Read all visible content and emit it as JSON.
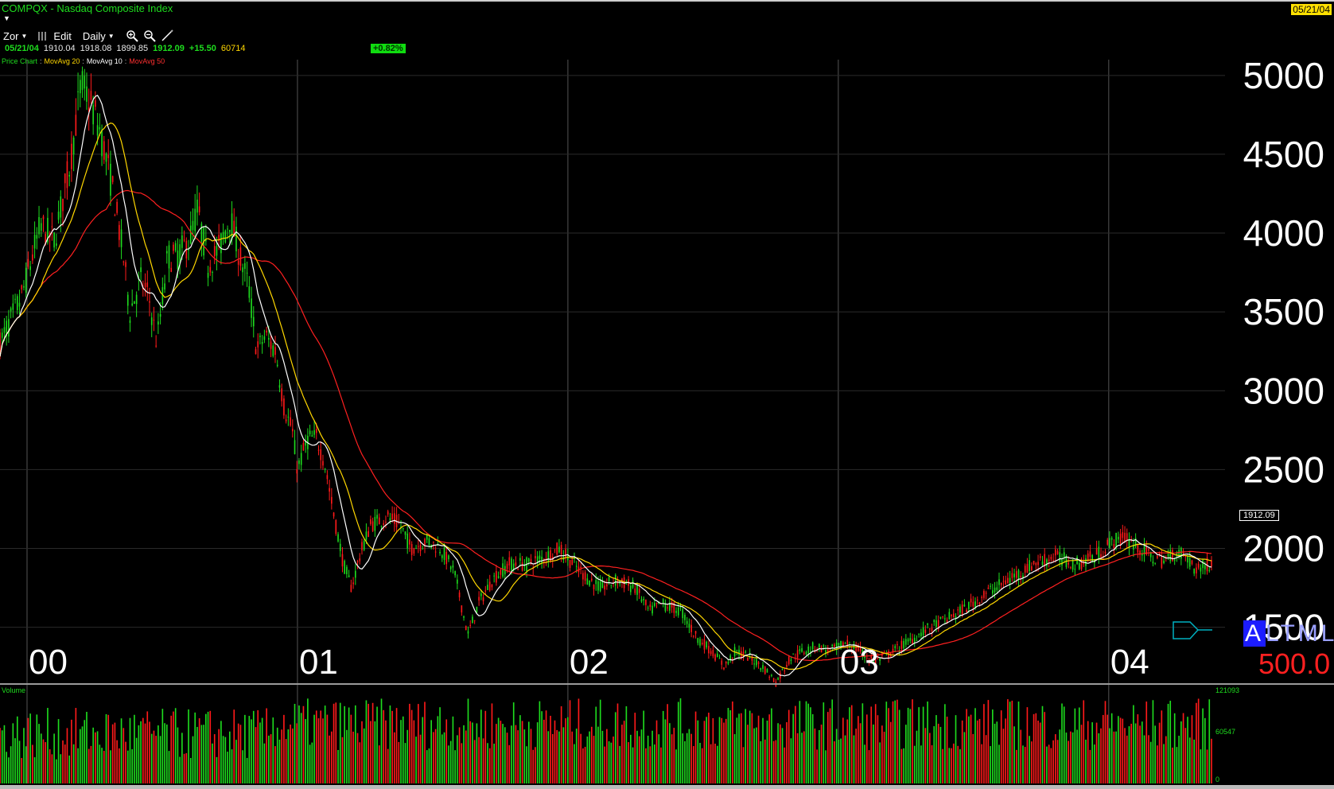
{
  "header": {
    "title": "COMPQX - Nasdaq Composite Index",
    "date_badge": "05/21/04"
  },
  "toolbar": {
    "zoom_menu": "Zor",
    "edit_label": "Edit",
    "period_label": "Daily"
  },
  "quote": {
    "date": "05/21/04",
    "open": "1910.04",
    "high": "1918.08",
    "low": "1899.85",
    "close": "1912.09",
    "change": "+15.50",
    "volume": "60714",
    "change_pct": "+0.82%"
  },
  "legend": {
    "price_chart": "Price Chart",
    "ma20": "MovAvg 20",
    "ma10": "MovAvg 10",
    "ma50": "MovAvg 50",
    "colors": {
      "price_up": "#1edc1e",
      "price_down": "#ff1a1a",
      "ma20": "#ffd700",
      "ma10": "#ffffff",
      "ma50": "#ff2020"
    }
  },
  "price_panel": {
    "last_price_tag": "1912.09",
    "alt_label_highlight": "A",
    "alt_label_rest": "LTML",
    "scale_value": "500.0"
  },
  "volume_panel": {
    "label": "Volume",
    "ticks": [
      "121093",
      "60547",
      "0"
    ]
  },
  "chart_data": {
    "type": "line",
    "series_kind": "ohlc-candlestick with moving averages",
    "y_axis": {
      "ticks": [
        1500,
        2000,
        2500,
        3000,
        3500,
        4000,
        4500,
        5000
      ],
      "ylim": [
        1150,
        5100
      ],
      "side": "right"
    },
    "x_axis": {
      "tick_labels": [
        "00",
        "01",
        "02",
        "03",
        "04"
      ],
      "tick_t": [
        0.0,
        1.0,
        2.0,
        3.0,
        4.0
      ],
      "xlim": [
        -0.1,
        4.38
      ]
    },
    "grid": "vertical at year boundaries",
    "price_path": [
      [
        -0.1,
        3300
      ],
      [
        -0.02,
        3600
      ],
      [
        0.05,
        4050
      ],
      [
        0.1,
        3950
      ],
      [
        0.16,
        4450
      ],
      [
        0.2,
        4950
      ],
      [
        0.24,
        4800
      ],
      [
        0.27,
        4650
      ],
      [
        0.32,
        4250
      ],
      [
        0.36,
        3800
      ],
      [
        0.38,
        3500
      ],
      [
        0.42,
        3700
      ],
      [
        0.45,
        3600
      ],
      [
        0.48,
        3300
      ],
      [
        0.52,
        3850
      ],
      [
        0.55,
        3850
      ],
      [
        0.6,
        3950
      ],
      [
        0.63,
        4150
      ],
      [
        0.67,
        3800
      ],
      [
        0.71,
        3900
      ],
      [
        0.75,
        4100
      ],
      [
        0.78,
        3900
      ],
      [
        0.82,
        3650
      ],
      [
        0.85,
        3250
      ],
      [
        0.88,
        3350
      ],
      [
        0.92,
        3250
      ],
      [
        0.95,
        2900
      ],
      [
        0.98,
        2750
      ],
      [
        1.0,
        2500
      ],
      [
        1.04,
        2700
      ],
      [
        1.07,
        2700
      ],
      [
        1.1,
        2550
      ],
      [
        1.13,
        2250
      ],
      [
        1.17,
        1900
      ],
      [
        1.2,
        1750
      ],
      [
        1.23,
        1950
      ],
      [
        1.27,
        2150
      ],
      [
        1.33,
        2200
      ],
      [
        1.38,
        2150
      ],
      [
        1.42,
        2000
      ],
      [
        1.48,
        2050
      ],
      [
        1.53,
        2000
      ],
      [
        1.58,
        1850
      ],
      [
        1.63,
        1450
      ],
      [
        1.67,
        1650
      ],
      [
        1.72,
        1800
      ],
      [
        1.78,
        1900
      ],
      [
        1.85,
        1900
      ],
      [
        1.92,
        1950
      ],
      [
        1.97,
        2000
      ],
      [
        2.02,
        1900
      ],
      [
        2.08,
        1800
      ],
      [
        2.12,
        1750
      ],
      [
        2.18,
        1800
      ],
      [
        2.25,
        1750
      ],
      [
        2.3,
        1600
      ],
      [
        2.35,
        1650
      ],
      [
        2.42,
        1600
      ],
      [
        2.47,
        1450
      ],
      [
        2.53,
        1350
      ],
      [
        2.58,
        1250
      ],
      [
        2.62,
        1350
      ],
      [
        2.68,
        1300
      ],
      [
        2.72,
        1250
      ],
      [
        2.77,
        1150
      ],
      [
        2.82,
        1300
      ],
      [
        2.87,
        1350
      ],
      [
        2.92,
        1380
      ],
      [
        2.97,
        1350
      ],
      [
        3.03,
        1400
      ],
      [
        3.08,
        1350
      ],
      [
        3.13,
        1280
      ],
      [
        3.18,
        1320
      ],
      [
        3.25,
        1400
      ],
      [
        3.32,
        1480
      ],
      [
        3.4,
        1550
      ],
      [
        3.47,
        1620
      ],
      [
        3.55,
        1720
      ],
      [
        3.63,
        1800
      ],
      [
        3.72,
        1900
      ],
      [
        3.8,
        1950
      ],
      [
        3.88,
        1900
      ],
      [
        3.95,
        1950
      ],
      [
        4.01,
        2040
      ],
      [
        4.06,
        2070
      ],
      [
        4.1,
        2020
      ],
      [
        4.15,
        1950
      ],
      [
        4.2,
        1920
      ],
      [
        4.24,
        1970
      ],
      [
        4.28,
        1960
      ],
      [
        4.32,
        1870
      ],
      [
        4.35,
        1880
      ],
      [
        4.38,
        1912
      ]
    ],
    "last_close": 1912.09,
    "volume_range": [
      0,
      121093
    ]
  }
}
